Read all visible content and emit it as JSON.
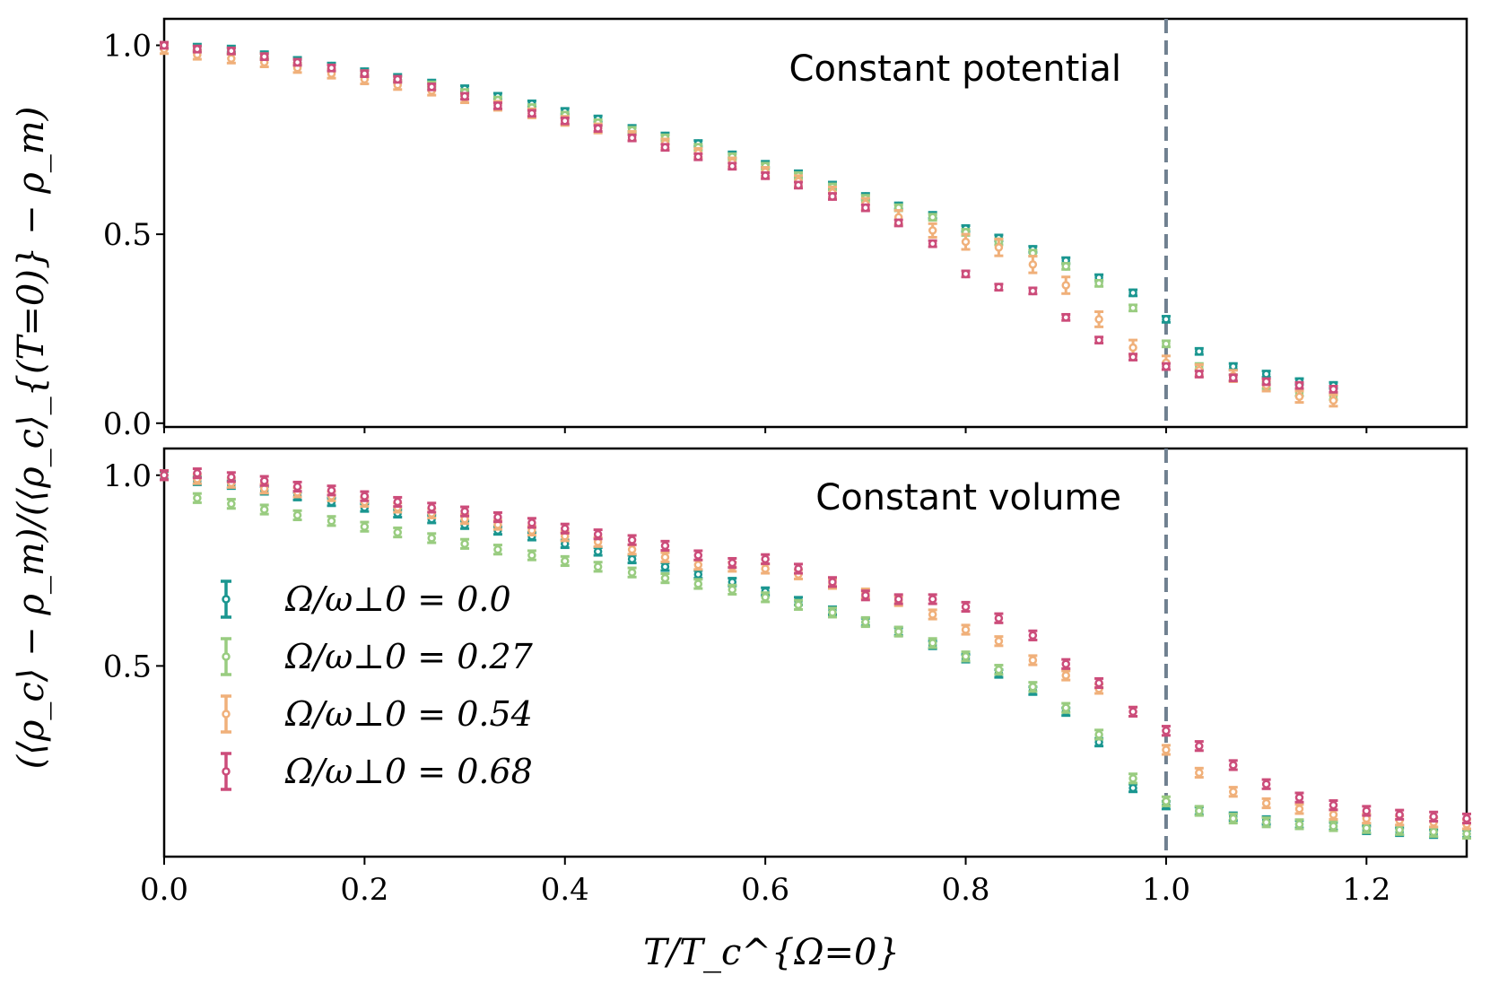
{
  "chart_data": [
    {
      "type": "scatter",
      "panel": "top",
      "title": "Constant potential",
      "xlim": [
        0.0,
        1.3
      ],
      "ylim": [
        -0.01,
        1.07
      ],
      "yticks": [
        0.0,
        0.5,
        1.0
      ],
      "ytick_labels": [
        "0.0",
        "0.5",
        "1.0"
      ],
      "vline_x": 1.0,
      "series": [
        {
          "name": "Ω/ω⊥0 = 0.0",
          "color": "#1a9690",
          "x": [
            0.0,
            0.033,
            0.067,
            0.1,
            0.133,
            0.167,
            0.2,
            0.233,
            0.267,
            0.3,
            0.333,
            0.367,
            0.4,
            0.433,
            0.467,
            0.5,
            0.533,
            0.567,
            0.6,
            0.633,
            0.667,
            0.7,
            0.733,
            0.767,
            0.8,
            0.833,
            0.867,
            0.9,
            0.933,
            0.967,
            1.0,
            1.033,
            1.067,
            1.1,
            1.133,
            1.167
          ],
          "y": [
            1.0,
            0.995,
            0.99,
            0.975,
            0.96,
            0.945,
            0.93,
            0.915,
            0.9,
            0.885,
            0.865,
            0.845,
            0.825,
            0.805,
            0.78,
            0.76,
            0.74,
            0.71,
            0.685,
            0.66,
            0.63,
            0.6,
            0.575,
            0.55,
            0.515,
            0.49,
            0.46,
            0.43,
            0.385,
            0.345,
            0.275,
            0.19,
            0.15,
            0.13,
            0.11,
            0.1
          ],
          "err": [
            0.008,
            0.008,
            0.008,
            0.008,
            0.008,
            0.008,
            0.008,
            0.008,
            0.008,
            0.008,
            0.008,
            0.008,
            0.008,
            0.008,
            0.008,
            0.008,
            0.008,
            0.008,
            0.008,
            0.008,
            0.008,
            0.008,
            0.008,
            0.008,
            0.008,
            0.008,
            0.008,
            0.008,
            0.008,
            0.008,
            0.008,
            0.008,
            0.008,
            0.008,
            0.008,
            0.008
          ]
        },
        {
          "name": "Ω/ω⊥0 = 0.27",
          "color": "#99cc80",
          "x": [
            0.0,
            0.033,
            0.067,
            0.1,
            0.133,
            0.167,
            0.2,
            0.233,
            0.267,
            0.3,
            0.333,
            0.367,
            0.4,
            0.433,
            0.467,
            0.5,
            0.533,
            0.567,
            0.6,
            0.633,
            0.667,
            0.7,
            0.733,
            0.767,
            0.8,
            0.833,
            0.867,
            0.9,
            0.933,
            0.967,
            1.0,
            1.033,
            1.067,
            1.1,
            1.133,
            1.167
          ],
          "y": [
            1.0,
            0.99,
            0.985,
            0.97,
            0.955,
            0.94,
            0.925,
            0.91,
            0.895,
            0.875,
            0.855,
            0.835,
            0.815,
            0.795,
            0.775,
            0.755,
            0.73,
            0.705,
            0.68,
            0.655,
            0.625,
            0.595,
            0.57,
            0.545,
            0.505,
            0.48,
            0.45,
            0.415,
            0.37,
            0.305,
            0.21,
            0.15,
            0.12,
            0.1,
            0.08,
            0.07
          ],
          "err": [
            0.008,
            0.008,
            0.008,
            0.008,
            0.008,
            0.008,
            0.008,
            0.008,
            0.008,
            0.008,
            0.008,
            0.008,
            0.008,
            0.008,
            0.008,
            0.008,
            0.008,
            0.008,
            0.008,
            0.008,
            0.008,
            0.008,
            0.008,
            0.008,
            0.008,
            0.008,
            0.008,
            0.008,
            0.008,
            0.008,
            0.008,
            0.008,
            0.008,
            0.008,
            0.008,
            0.008
          ]
        },
        {
          "name": "Ω/ω⊥0 = 0.54",
          "color": "#f0b07a",
          "x": [
            0.0,
            0.033,
            0.067,
            0.1,
            0.133,
            0.167,
            0.2,
            0.233,
            0.267,
            0.3,
            0.333,
            0.367,
            0.4,
            0.433,
            0.467,
            0.5,
            0.533,
            0.567,
            0.6,
            0.633,
            0.667,
            0.7,
            0.733,
            0.767,
            0.8,
            0.833,
            0.867,
            0.9,
            0.933,
            0.967,
            1.0,
            1.033,
            1.067,
            1.1,
            1.133,
            1.167
          ],
          "y": [
            0.99,
            0.975,
            0.965,
            0.955,
            0.94,
            0.925,
            0.91,
            0.895,
            0.88,
            0.86,
            0.84,
            0.82,
            0.8,
            0.78,
            0.76,
            0.74,
            0.715,
            0.69,
            0.665,
            0.64,
            0.61,
            0.58,
            0.545,
            0.51,
            0.48,
            0.465,
            0.42,
            0.365,
            0.275,
            0.2,
            0.16,
            0.14,
            0.125,
            0.1,
            0.07,
            0.06
          ],
          "err": [
            0.012,
            0.012,
            0.012,
            0.012,
            0.012,
            0.012,
            0.012,
            0.012,
            0.012,
            0.012,
            0.012,
            0.012,
            0.012,
            0.012,
            0.012,
            0.012,
            0.012,
            0.012,
            0.012,
            0.015,
            0.015,
            0.015,
            0.018,
            0.018,
            0.02,
            0.022,
            0.022,
            0.022,
            0.02,
            0.02,
            0.018,
            0.015,
            0.015,
            0.015,
            0.015,
            0.015
          ]
        },
        {
          "name": "Ω/ω⊥0 = 0.68",
          "color": "#cc4c7a",
          "x": [
            0.0,
            0.033,
            0.067,
            0.1,
            0.133,
            0.167,
            0.2,
            0.233,
            0.267,
            0.3,
            0.333,
            0.367,
            0.4,
            0.433,
            0.467,
            0.5,
            0.533,
            0.567,
            0.6,
            0.633,
            0.667,
            0.7,
            0.733,
            0.767,
            0.8,
            0.833,
            0.867,
            0.9,
            0.933,
            0.967,
            1.0,
            1.033,
            1.067,
            1.1,
            1.133,
            1.167
          ],
          "y": [
            1.0,
            0.99,
            0.985,
            0.97,
            0.955,
            0.94,
            0.925,
            0.91,
            0.89,
            0.865,
            0.84,
            0.82,
            0.8,
            0.78,
            0.755,
            0.73,
            0.705,
            0.68,
            0.655,
            0.63,
            0.6,
            0.57,
            0.53,
            0.475,
            0.395,
            0.36,
            0.35,
            0.28,
            0.22,
            0.175,
            0.15,
            0.13,
            0.12,
            0.11,
            0.1,
            0.09
          ],
          "err": [
            0.008,
            0.008,
            0.008,
            0.008,
            0.008,
            0.008,
            0.008,
            0.008,
            0.008,
            0.008,
            0.008,
            0.008,
            0.008,
            0.008,
            0.008,
            0.008,
            0.008,
            0.008,
            0.008,
            0.008,
            0.008,
            0.008,
            0.008,
            0.008,
            0.008,
            0.008,
            0.008,
            0.008,
            0.008,
            0.008,
            0.008,
            0.008,
            0.008,
            0.008,
            0.008,
            0.008
          ]
        }
      ]
    },
    {
      "type": "scatter",
      "panel": "bottom",
      "title": "Constant volume",
      "xlim": [
        0.0,
        1.3
      ],
      "ylim": [
        0.0,
        1.07
      ],
      "yticks": [
        0.5,
        1.0
      ],
      "ytick_labels": [
        "0.5",
        "1.0"
      ],
      "xticks": [
        0.0,
        0.2,
        0.4,
        0.6,
        0.8,
        1.0,
        1.2
      ],
      "xtick_labels": [
        "0.0",
        "0.2",
        "0.4",
        "0.6",
        "0.8",
        "1.0",
        "1.2"
      ],
      "vline_x": 1.0,
      "legend_position": "middle-left",
      "series": [
        {
          "name": "Ω/ω⊥0 = 0.0",
          "color": "#1a9690",
          "x": [
            0.0,
            0.033,
            0.067,
            0.1,
            0.133,
            0.167,
            0.2,
            0.233,
            0.267,
            0.3,
            0.333,
            0.367,
            0.4,
            0.433,
            0.467,
            0.5,
            0.533,
            0.567,
            0.6,
            0.633,
            0.667,
            0.7,
            0.733,
            0.767,
            0.8,
            0.833,
            0.867,
            0.9,
            0.933,
            0.967,
            1.0,
            1.033,
            1.067,
            1.1,
            1.133,
            1.167,
            1.2,
            1.233,
            1.267,
            1.3
          ],
          "y": [
            1.0,
            0.985,
            0.975,
            0.96,
            0.945,
            0.93,
            0.915,
            0.9,
            0.885,
            0.87,
            0.855,
            0.84,
            0.82,
            0.8,
            0.78,
            0.76,
            0.74,
            0.72,
            0.695,
            0.67,
            0.645,
            0.615,
            0.59,
            0.555,
            0.52,
            0.48,
            0.435,
            0.38,
            0.3,
            0.18,
            0.135,
            0.12,
            0.105,
            0.095,
            0.085,
            0.08,
            0.07,
            0.065,
            0.06,
            0.06
          ],
          "err": [
            0.01,
            0.01,
            0.01,
            0.01,
            0.01,
            0.01,
            0.01,
            0.01,
            0.01,
            0.01,
            0.01,
            0.01,
            0.01,
            0.01,
            0.01,
            0.01,
            0.01,
            0.01,
            0.01,
            0.01,
            0.01,
            0.01,
            0.01,
            0.01,
            0.01,
            0.01,
            0.01,
            0.01,
            0.01,
            0.01,
            0.01,
            0.01,
            0.01,
            0.01,
            0.01,
            0.01,
            0.01,
            0.01,
            0.01,
            0.01
          ]
        },
        {
          "name": "Ω/ω⊥0 = 0.27",
          "color": "#99cc80",
          "x": [
            0.0,
            0.033,
            0.067,
            0.1,
            0.133,
            0.167,
            0.2,
            0.233,
            0.267,
            0.3,
            0.333,
            0.367,
            0.4,
            0.433,
            0.467,
            0.5,
            0.533,
            0.567,
            0.6,
            0.633,
            0.667,
            0.7,
            0.733,
            0.767,
            0.8,
            0.833,
            0.867,
            0.9,
            0.933,
            0.967,
            1.0,
            1.033,
            1.067,
            1.1,
            1.133,
            1.167,
            1.2,
            1.233,
            1.267,
            1.3
          ],
          "y": [
            1.0,
            0.94,
            0.925,
            0.91,
            0.895,
            0.88,
            0.865,
            0.85,
            0.835,
            0.82,
            0.805,
            0.79,
            0.775,
            0.76,
            0.745,
            0.73,
            0.715,
            0.7,
            0.68,
            0.66,
            0.64,
            0.615,
            0.59,
            0.56,
            0.525,
            0.49,
            0.445,
            0.39,
            0.32,
            0.205,
            0.145,
            0.12,
            0.1,
            0.09,
            0.085,
            0.08,
            0.075,
            0.07,
            0.065,
            0.06
          ],
          "err": [
            0.012,
            0.012,
            0.012,
            0.012,
            0.012,
            0.012,
            0.012,
            0.012,
            0.012,
            0.012,
            0.012,
            0.012,
            0.012,
            0.012,
            0.012,
            0.012,
            0.012,
            0.012,
            0.012,
            0.012,
            0.012,
            0.012,
            0.012,
            0.012,
            0.012,
            0.012,
            0.012,
            0.012,
            0.012,
            0.012,
            0.012,
            0.012,
            0.012,
            0.012,
            0.012,
            0.012,
            0.012,
            0.012,
            0.012,
            0.012
          ]
        },
        {
          "name": "Ω/ω⊥0 = 0.54",
          "color": "#f0b07a",
          "x": [
            0.0,
            0.033,
            0.067,
            0.1,
            0.133,
            0.167,
            0.2,
            0.233,
            0.267,
            0.3,
            0.333,
            0.367,
            0.4,
            0.433,
            0.467,
            0.5,
            0.533,
            0.567,
            0.6,
            0.633,
            0.667,
            0.7,
            0.733,
            0.767,
            0.8,
            0.833,
            0.867,
            0.9,
            0.933,
            0.967,
            1.0,
            1.033,
            1.067,
            1.1,
            1.133,
            1.167,
            1.2,
            1.233,
            1.267,
            1.3
          ],
          "y": [
            1.0,
            0.99,
            0.98,
            0.965,
            0.955,
            0.945,
            0.93,
            0.915,
            0.9,
            0.885,
            0.87,
            0.855,
            0.84,
            0.825,
            0.805,
            0.785,
            0.765,
            0.76,
            0.755,
            0.74,
            0.715,
            0.69,
            0.67,
            0.635,
            0.595,
            0.565,
            0.515,
            0.475,
            0.44,
            0.38,
            0.28,
            0.22,
            0.17,
            0.14,
            0.125,
            0.11,
            0.1,
            0.095,
            0.09,
            0.085
          ],
          "err": [
            0.012,
            0.012,
            0.012,
            0.012,
            0.012,
            0.012,
            0.012,
            0.012,
            0.012,
            0.012,
            0.012,
            0.012,
            0.012,
            0.012,
            0.012,
            0.012,
            0.012,
            0.012,
            0.012,
            0.012,
            0.012,
            0.012,
            0.012,
            0.012,
            0.012,
            0.012,
            0.012,
            0.012,
            0.012,
            0.012,
            0.012,
            0.012,
            0.012,
            0.012,
            0.012,
            0.012,
            0.012,
            0.012,
            0.012,
            0.012
          ]
        },
        {
          "name": "Ω/ω⊥0 = 0.68",
          "color": "#cc4c7a",
          "x": [
            0.0,
            0.033,
            0.067,
            0.1,
            0.133,
            0.167,
            0.2,
            0.233,
            0.267,
            0.3,
            0.333,
            0.367,
            0.4,
            0.433,
            0.467,
            0.5,
            0.533,
            0.567,
            0.6,
            0.633,
            0.667,
            0.7,
            0.733,
            0.767,
            0.8,
            0.833,
            0.867,
            0.9,
            0.933,
            0.967,
            1.0,
            1.033,
            1.067,
            1.1,
            1.133,
            1.167,
            1.2,
            1.233,
            1.267,
            1.3
          ],
          "y": [
            1.0,
            1.005,
            0.995,
            0.985,
            0.97,
            0.96,
            0.945,
            0.93,
            0.915,
            0.905,
            0.89,
            0.875,
            0.86,
            0.845,
            0.83,
            0.815,
            0.79,
            0.77,
            0.78,
            0.755,
            0.72,
            0.685,
            0.675,
            0.675,
            0.655,
            0.625,
            0.58,
            0.505,
            0.455,
            0.38,
            0.33,
            0.29,
            0.24,
            0.19,
            0.155,
            0.135,
            0.12,
            0.11,
            0.105,
            0.1
          ],
          "err": [
            0.012,
            0.012,
            0.012,
            0.012,
            0.012,
            0.012,
            0.012,
            0.012,
            0.012,
            0.012,
            0.012,
            0.012,
            0.012,
            0.012,
            0.012,
            0.012,
            0.012,
            0.012,
            0.012,
            0.012,
            0.012,
            0.012,
            0.012,
            0.012,
            0.012,
            0.012,
            0.012,
            0.012,
            0.012,
            0.012,
            0.012,
            0.012,
            0.012,
            0.012,
            0.012,
            0.012,
            0.012,
            0.012,
            0.012,
            0.012
          ]
        }
      ]
    }
  ],
  "labels": {
    "xlabel": "T/T_c^{Ω=0}",
    "ylabel": "(⟨ρ_c⟩ − ρ_m)/(⟨ρ_c⟩_{(T=0)} − ρ_m)"
  },
  "legend": {
    "items": [
      {
        "label": "Ω/ω⊥0 = 0.0",
        "color": "#1a9690"
      },
      {
        "label": "Ω/ω⊥0 = 0.27",
        "color": "#99cc80"
      },
      {
        "label": "Ω/ω⊥0 = 0.54",
        "color": "#f0b07a"
      },
      {
        "label": "Ω/ω⊥0 = 0.68",
        "color": "#cc4c7a"
      }
    ]
  },
  "vline_color": "#708090"
}
